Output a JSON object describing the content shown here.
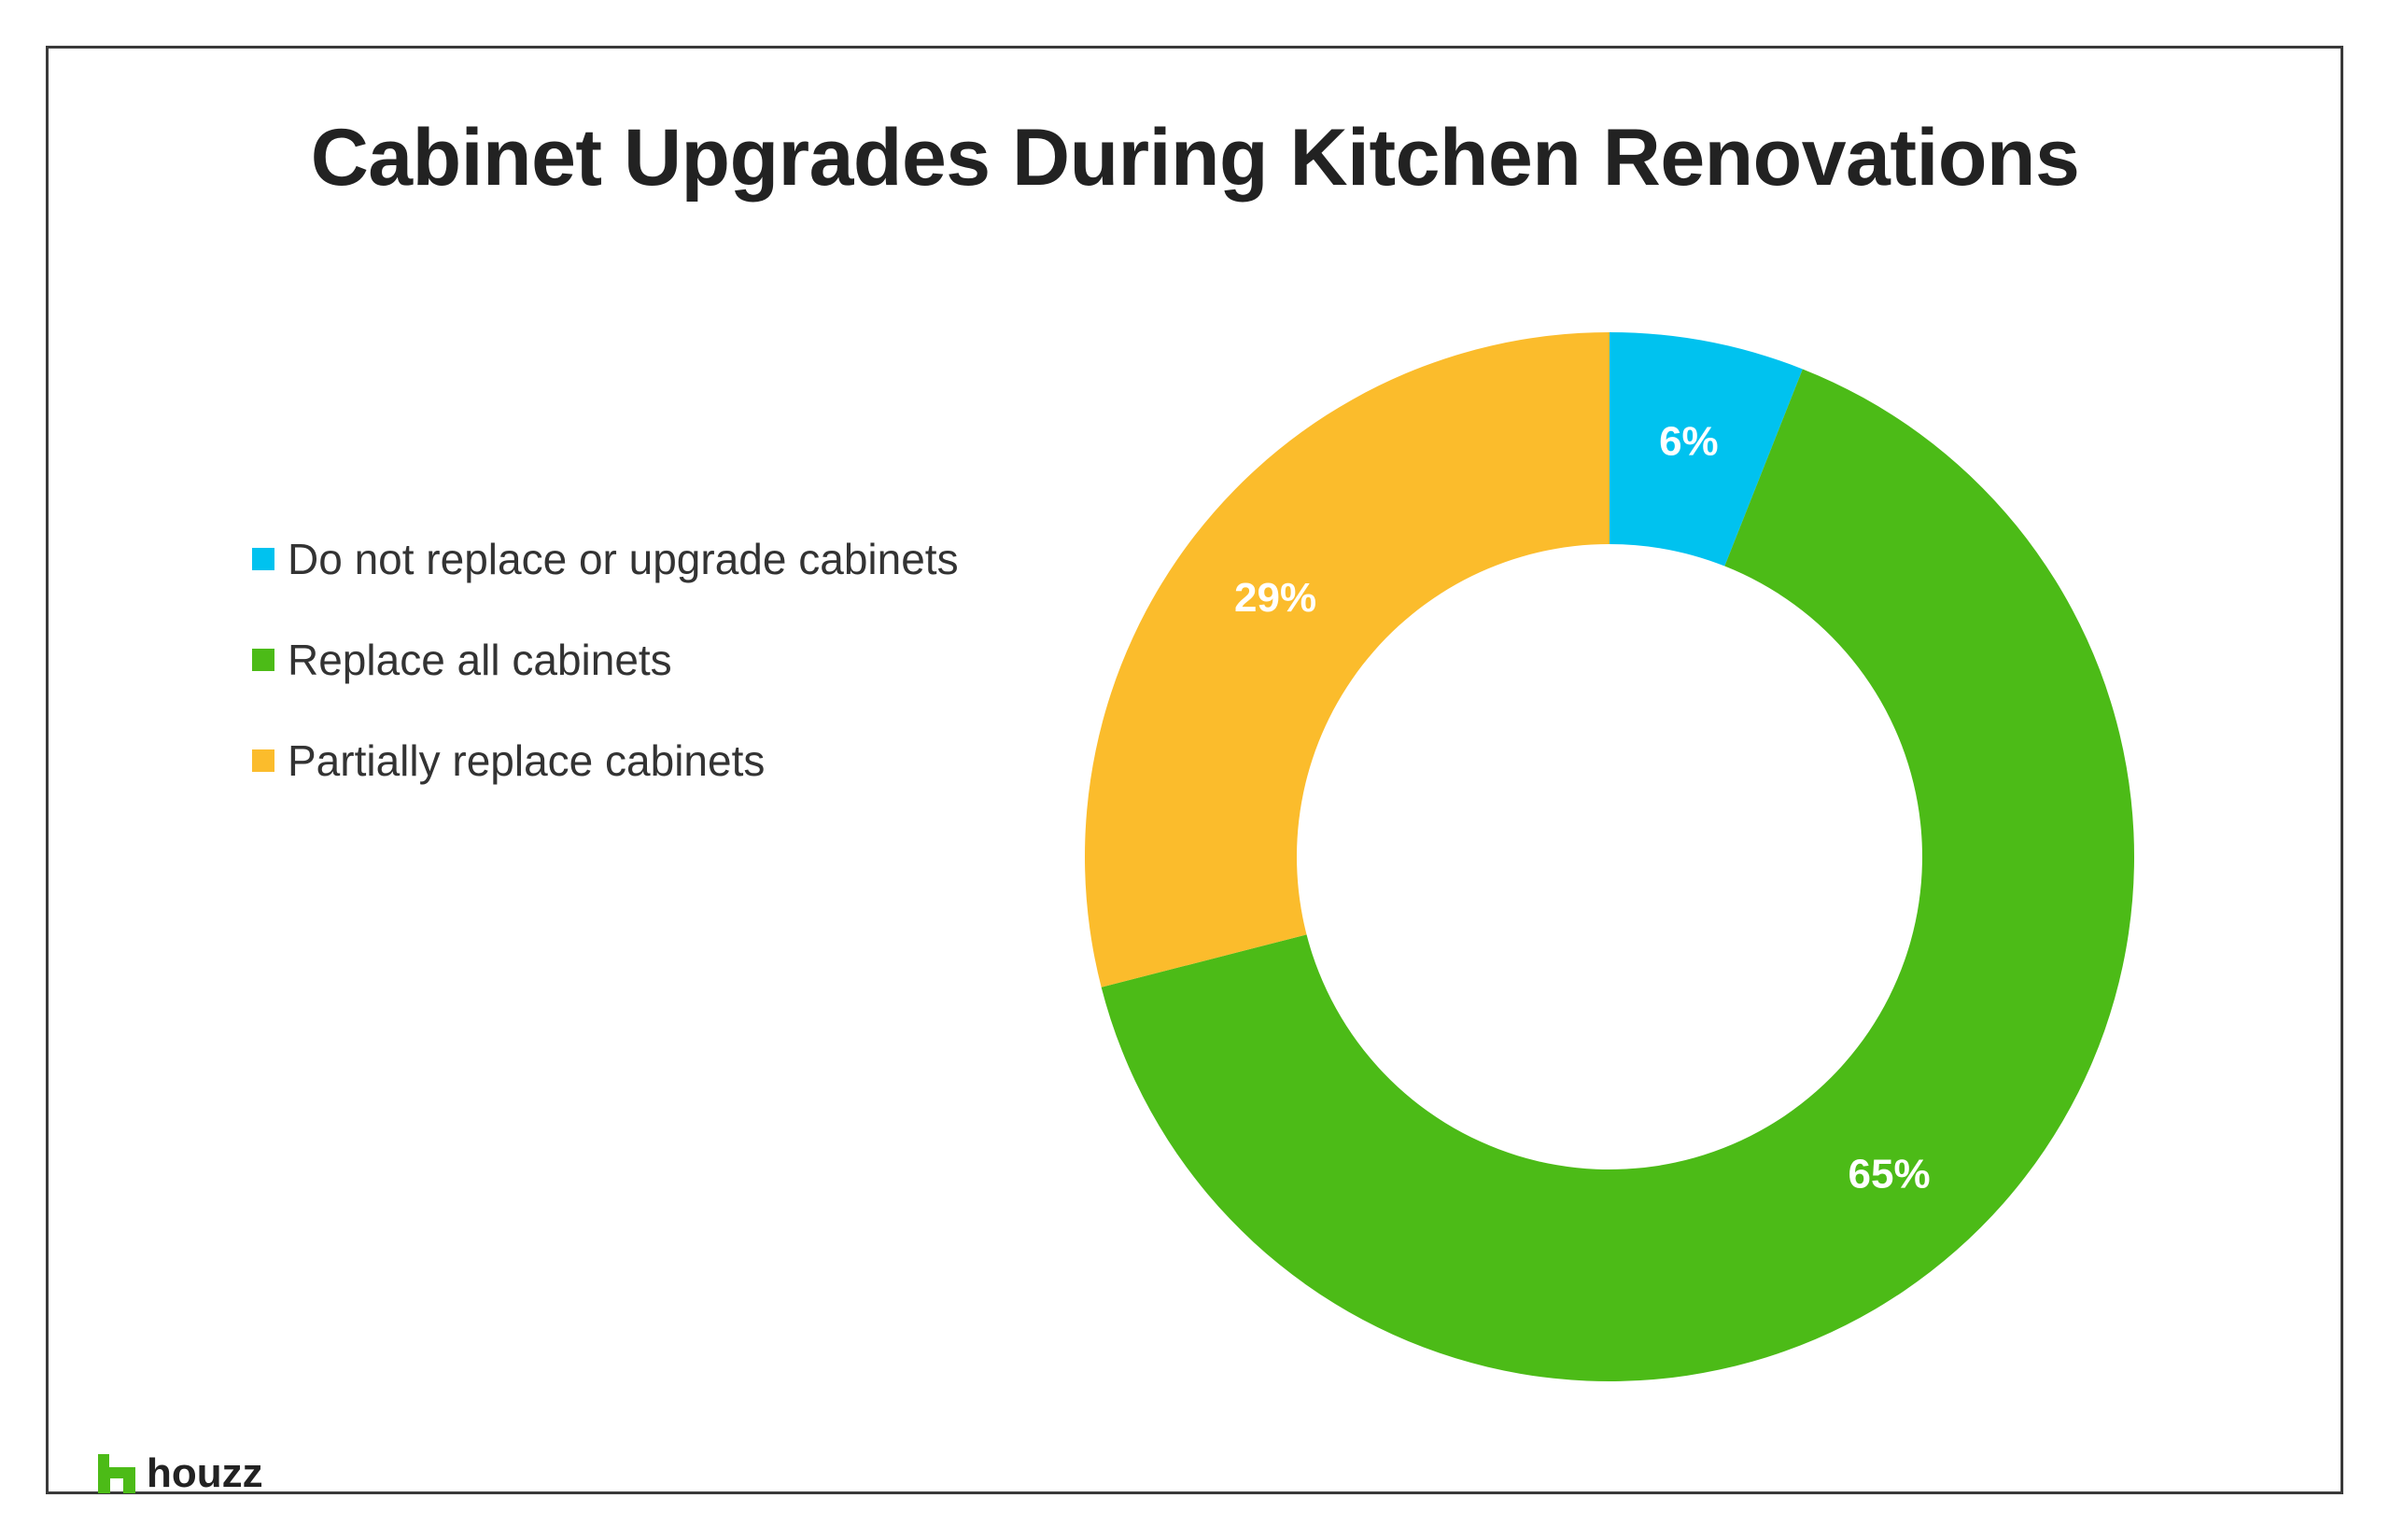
{
  "colors": {
    "blue": "#00c2ef",
    "green": "#4cbb17",
    "yellow": "#fbbc2c"
  },
  "chart_data": {
    "type": "pie",
    "variant": "donut",
    "title": "Cabinet Upgrades During Kitchen Renovations",
    "categories": [
      "Do not replace or upgrade cabinets",
      "Replace all cabinets",
      "Partially replace cabinets"
    ],
    "values": [
      6,
      65,
      29
    ],
    "value_labels": [
      "6%",
      "65%",
      "29%"
    ],
    "unit": "%",
    "colors": [
      "#00c2ef",
      "#4cbb17",
      "#fbbc2c"
    ],
    "legend_position": "left"
  },
  "logo": {
    "text": "houzz",
    "icon": "houzz-logo-icon"
  }
}
